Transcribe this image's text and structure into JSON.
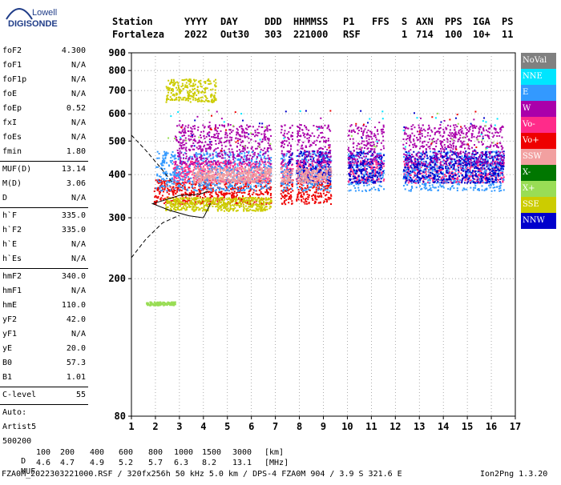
{
  "logo": {
    "brand": "Lowell",
    "product": "DIGISONDE"
  },
  "header": {
    "cols": [
      {
        "label": "Station",
        "value": "Fortaleza"
      },
      {
        "label": "YYYY",
        "value": "2022"
      },
      {
        "label": "DAY",
        "value": "Out30"
      },
      {
        "label": "DDD",
        "value": "303"
      },
      {
        "label": "HHMMSS",
        "value": "221000"
      },
      {
        "label": "P1",
        "value": "RSF"
      },
      {
        "label": "FFS",
        "value": ""
      },
      {
        "label": "S",
        "value": "1"
      },
      {
        "label": "AXN",
        "value": "714"
      },
      {
        "label": "PPS",
        "value": "100"
      },
      {
        "label": "IGA",
        "value": "10+"
      },
      {
        "label": "PS",
        "value": "11"
      }
    ]
  },
  "params": {
    "group1": [
      {
        "name": "foF2",
        "value": "4.300"
      },
      {
        "name": "foF1",
        "value": "N/A"
      },
      {
        "name": "foF1p",
        "value": "N/A"
      },
      {
        "name": "foE",
        "value": "N/A"
      },
      {
        "name": "foEp",
        "value": "0.52"
      },
      {
        "name": "fxI",
        "value": "N/A"
      },
      {
        "name": "foEs",
        "value": "N/A"
      },
      {
        "name": "fmin",
        "value": "1.80"
      }
    ],
    "group2": [
      {
        "name": "MUF(D)",
        "value": "13.14"
      },
      {
        "name": "M(D)",
        "value": "3.06"
      },
      {
        "name": "D",
        "value": "N/A"
      }
    ],
    "group3": [
      {
        "name": "h`F",
        "value": "335.0"
      },
      {
        "name": "h`F2",
        "value": "335.0"
      },
      {
        "name": "h`E",
        "value": "N/A"
      },
      {
        "name": "h`Es",
        "value": "N/A"
      }
    ],
    "group4": [
      {
        "name": "hmF2",
        "value": "340.0"
      },
      {
        "name": "hmF1",
        "value": "N/A"
      },
      {
        "name": "hmE",
        "value": "110.0"
      },
      {
        "name": "yF2",
        "value": "42.0"
      },
      {
        "name": "yF1",
        "value": "N/A"
      },
      {
        "name": "yE",
        "value": "20.0"
      },
      {
        "name": "B0",
        "value": "57.3"
      },
      {
        "name": "B1",
        "value": "1.01"
      }
    ],
    "group5": [
      {
        "name": "C-level",
        "value": "55"
      }
    ],
    "auto_label": "Auto:",
    "autoscaler": "Artist5",
    "code": "500200"
  },
  "legend": [
    {
      "label": "NoVal",
      "color": "#808080"
    },
    {
      "label": "NNE",
      "color": "#00e5ff"
    },
    {
      "label": "E",
      "color": "#3399ff"
    },
    {
      "label": "W",
      "color": "#aa00aa"
    },
    {
      "label": "Vo-",
      "color": "#ff2b8a"
    },
    {
      "label": "Vo+",
      "color": "#ee0000"
    },
    {
      "label": "SSW",
      "color": "#f2a0a0"
    },
    {
      "label": "X-",
      "color": "#007700"
    },
    {
      "label": "X+",
      "color": "#99dd55"
    },
    {
      "label": "SSE",
      "color": "#cccc00"
    },
    {
      "label": "NNW",
      "color": "#0000cc"
    }
  ],
  "chart_data": {
    "type": "scatter",
    "title": "",
    "xlabel": "",
    "ylabel": "",
    "xlim": [
      1,
      17
    ],
    "ylim": [
      80,
      900
    ],
    "yscale": "log",
    "xticks": [
      1,
      2,
      3,
      4,
      5,
      6,
      7,
      8,
      9,
      10,
      11,
      12,
      13,
      14,
      15,
      16,
      17
    ],
    "yticks": [
      80,
      200,
      300,
      400,
      500,
      600,
      700,
      800,
      900
    ],
    "grid": true,
    "legend_position": "right",
    "clusters": [
      {
        "name": "Vo+",
        "color": "#ee0000",
        "x": [
          1.9,
          9.4
        ],
        "y": [
          330,
          390
        ]
      },
      {
        "name": "SSE",
        "color": "#cccc00",
        "x": [
          2.4,
          7.0
        ],
        "y": [
          315,
          345
        ]
      },
      {
        "name": "Vo-",
        "color": "#ff2b8a",
        "x": [
          2.7,
          16.5
        ],
        "y": [
          380,
          440
        ]
      },
      {
        "name": "E",
        "color": "#3399ff",
        "x": [
          2.0,
          16.5
        ],
        "y": [
          360,
          470
        ]
      },
      {
        "name": "NNW",
        "color": "#0000cc",
        "x": [
          7.5,
          16.5
        ],
        "y": [
          380,
          470
        ]
      },
      {
        "name": "W",
        "color": "#aa00aa",
        "x": [
          2.8,
          16.5
        ],
        "y": [
          430,
          560
        ]
      },
      {
        "name": "SSW",
        "color": "#f2a0a0",
        "x": [
          3.5,
          9.3
        ],
        "y": [
          380,
          420
        ]
      },
      {
        "name": "X+",
        "color": "#99dd55",
        "x": [
          1.6,
          2.8
        ],
        "y": [
          168,
          172
        ]
      },
      {
        "name": "SSE-high",
        "color": "#cccc00",
        "x": [
          2.4,
          4.5
        ],
        "y": [
          650,
          760
        ]
      }
    ],
    "profile_solid": [
      [
        1.9,
        330
      ],
      [
        2.3,
        336
      ],
      [
        3.0,
        348
      ],
      [
        3.6,
        350
      ],
      [
        3.9,
        352
      ],
      [
        4.2,
        358
      ]
    ],
    "profile_solid_low": [
      [
        1.85,
        330
      ],
      [
        2.6,
        315
      ],
      [
        3.4,
        304
      ],
      [
        4.0,
        300
      ],
      [
        4.3,
        330
      ]
    ],
    "profile_dashed": [
      [
        1.0,
        230
      ],
      [
        1.6,
        260
      ],
      [
        2.3,
        290
      ],
      [
        3.0,
        305
      ]
    ],
    "profile_dashed_high": [
      [
        1.0,
        520
      ],
      [
        1.6,
        470
      ],
      [
        2.2,
        420
      ],
      [
        2.7,
        380
      ]
    ]
  },
  "footer": {
    "d_label": "D",
    "d_values": [
      "100",
      "200",
      "400",
      "600",
      "800",
      "1000",
      "1500",
      "3000"
    ],
    "d_unit": "[km]",
    "muf_label": "MUF",
    "muf_values": [
      "4.6",
      "4.7",
      "4.9",
      "5.2",
      "5.7",
      "6.3",
      "8.2",
      "13.1"
    ],
    "muf_unit": "[MHz]",
    "file_line": "FZA0M_2022303221000.RSF / 320fx256h 50 kHz 5.0 km / DPS-4 FZA0M 904 / 3.9 S 321.6 E",
    "version": "Ion2Png 1.3.20"
  }
}
